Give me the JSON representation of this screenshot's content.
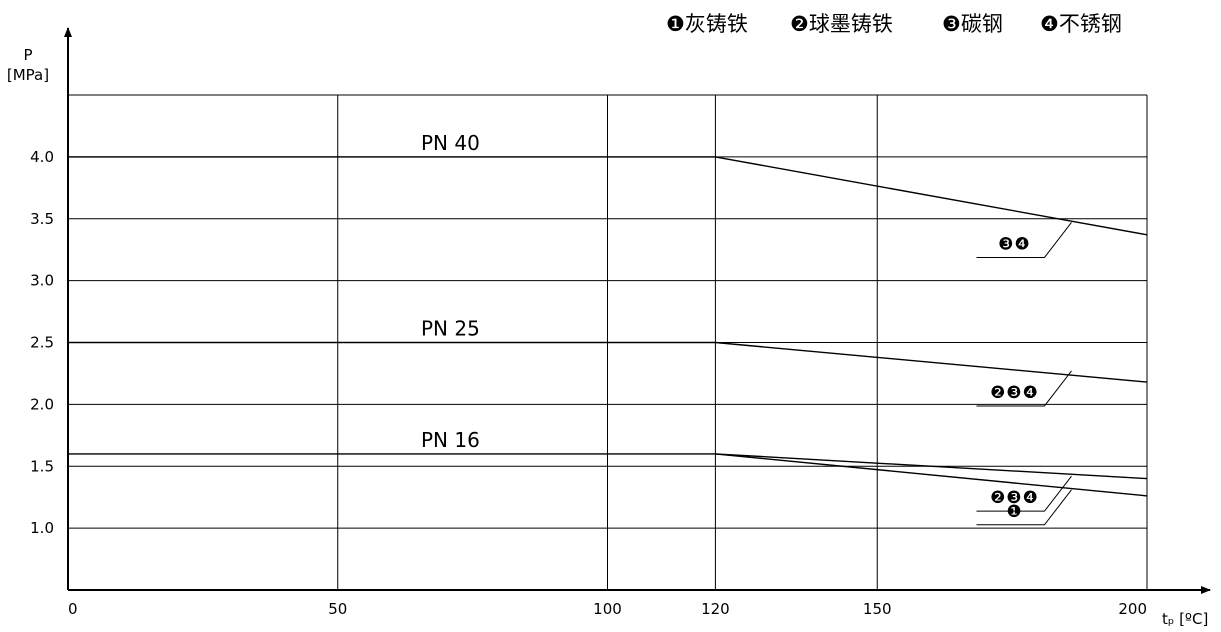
{
  "chart_data": {
    "type": "line",
    "legend": [
      "❶灰铸铁",
      "❷球墨铸铁",
      "❸碳钢",
      "❹不锈钢"
    ],
    "y_axis": {
      "title_line1": "P",
      "title_line2": "[MPa]",
      "ticks": [
        "1.0",
        "1.5",
        "2.0",
        "2.5",
        "3.0",
        "3.5",
        "4.0"
      ],
      "range": [
        0.5,
        4.5
      ]
    },
    "x_axis": {
      "title": "tₚ [ºC]",
      "ticks": [
        0,
        50,
        100,
        120,
        150,
        200
      ],
      "range": [
        0,
        200
      ]
    },
    "grid": true,
    "series": [
      {
        "name": "PN 40",
        "points": [
          [
            0,
            4.0
          ],
          [
            120,
            4.0
          ],
          [
            200,
            3.37
          ]
        ]
      },
      {
        "name": "PN 25",
        "points": [
          [
            0,
            2.5
          ],
          [
            120,
            2.5
          ],
          [
            200,
            2.18
          ]
        ]
      },
      {
        "name": "PN 16",
        "points": [
          [
            0,
            1.6
          ],
          [
            120,
            1.6
          ],
          [
            200,
            1.4
          ]
        ]
      },
      {
        "name": "PN 16",
        "points": [
          [
            120,
            1.6
          ],
          [
            200,
            1.26
          ]
        ]
      }
    ],
    "annotations": [
      {
        "text": "❸❹",
        "x": 186,
        "y": 3.47
      },
      {
        "text": "❷❸❹",
        "x": 186,
        "y": 2.27
      },
      {
        "text": "❷❸❹",
        "x": 186,
        "y": 1.42
      },
      {
        "text": "❶",
        "x": 186,
        "y": 1.31
      }
    ]
  }
}
